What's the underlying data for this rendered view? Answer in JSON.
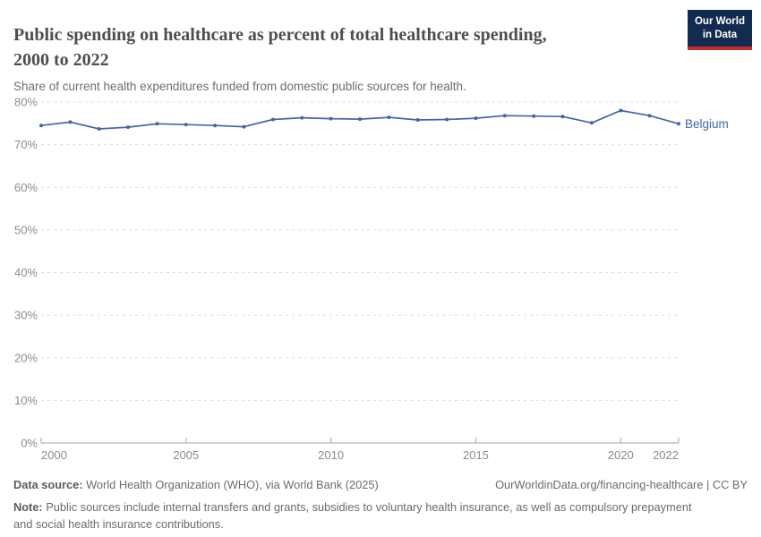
{
  "header": {
    "title": "Public spending on healthcare as percent of total healthcare spending, 2000 to 2022",
    "subtitle": "Share of current health expenditures funded from domestic public sources for health.",
    "logo": {
      "line1": "Our World",
      "line2": "in Data",
      "bg_color": "#122b4e",
      "accent_color": "#c2302e"
    }
  },
  "chart_data": {
    "type": "line",
    "title": "Public spending on healthcare as percent of total healthcare spending, 2000 to 2022",
    "xlabel": "",
    "ylabel": "",
    "xlim": [
      2000,
      2022
    ],
    "ylim": [
      0,
      80
    ],
    "xticks": [
      2000,
      2005,
      2010,
      2015,
      2020,
      2022
    ],
    "yticks": [
      0,
      10,
      20,
      30,
      40,
      50,
      60,
      70,
      80
    ],
    "ytick_suffix": "%",
    "grid": "horizontal-dashed",
    "legend_position": "end-of-line-label",
    "series": [
      {
        "name": "Belgium",
        "color": "#4266a8",
        "x": [
          2000,
          2001,
          2002,
          2003,
          2004,
          2005,
          2006,
          2007,
          2008,
          2009,
          2010,
          2011,
          2012,
          2013,
          2014,
          2015,
          2016,
          2017,
          2018,
          2019,
          2020,
          2021,
          2022
        ],
        "values": [
          74.5,
          75.3,
          73.7,
          74.1,
          74.9,
          74.7,
          74.5,
          74.2,
          75.9,
          76.3,
          76.1,
          76.0,
          76.4,
          75.8,
          75.9,
          76.2,
          76.8,
          76.7,
          76.6,
          75.1,
          78.0,
          76.8,
          74.9
        ]
      }
    ],
    "axis_color": "#a3a3a3",
    "gridline_color": "#dcdcdc",
    "tick_label_color": "#8c8c8c"
  },
  "footer": {
    "datasource_label": "Data source:",
    "datasource_text": " World Health Organization (WHO), via World Bank (2025)",
    "link_text": "OurWorldinData.org/financing-healthcare | CC BY",
    "note_label": "Note:",
    "note_text": " Public sources include internal transfers and grants, subsidies to voluntary health insurance, as well as compulsory prepayment and social health insurance contributions."
  }
}
